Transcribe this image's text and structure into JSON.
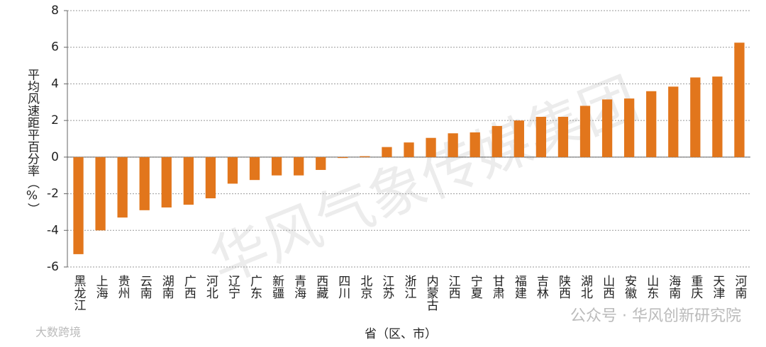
{
  "chart_data": {
    "type": "bar",
    "y_label": "平均风速距平百分率（%）",
    "x_label": "省（区、市）",
    "categories": [
      "黑龙江",
      "上海",
      "贵州",
      "云南",
      "湖南",
      "广西",
      "河北",
      "辽宁",
      "广东",
      "新疆",
      "青海",
      "西藏",
      "四川",
      "北京",
      "江苏",
      "浙江",
      "内蒙古",
      "江西",
      "宁夏",
      "甘肃",
      "福建",
      "吉林",
      "陕西",
      "湖北",
      "山西",
      "安徽",
      "山东",
      "海南",
      "重庆",
      "天津",
      "河南"
    ],
    "values": [
      -5.3,
      -4.0,
      -3.3,
      -2.9,
      -2.75,
      -2.6,
      -2.25,
      -1.45,
      -1.25,
      -1.0,
      -1.0,
      -0.7,
      -0.05,
      0.05,
      0.55,
      0.8,
      1.05,
      1.3,
      1.35,
      1.7,
      2.0,
      2.2,
      2.2,
      2.8,
      3.15,
      3.2,
      3.6,
      3.85,
      4.35,
      4.4,
      6.25
    ],
    "color": "#e2761c",
    "ylim": [
      -6,
      8
    ],
    "yticks": [
      -6,
      -4,
      -2,
      0,
      2,
      4,
      6,
      8
    ],
    "grid": true,
    "watermarks": [
      "华风气象传媒集团",
      "公众号 · 华风创新研究院",
      "大数跨境"
    ]
  }
}
